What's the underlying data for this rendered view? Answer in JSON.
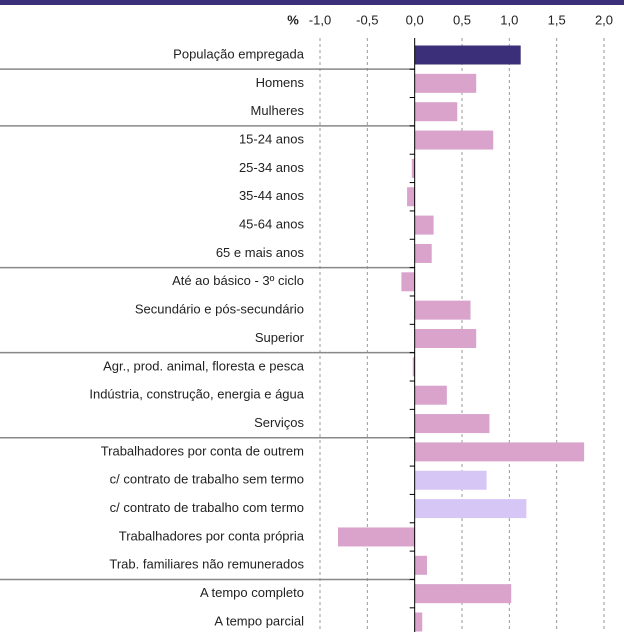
{
  "chart_data": {
    "type": "hbar",
    "x_label": "%",
    "categories": [
      "População empregada",
      "Homens",
      "Mulheres",
      "15-24 anos",
      "25-34 anos",
      "35-44 anos",
      "45-64 anos",
      "65 e mais anos",
      "Até ao básico - 3º ciclo",
      "Secundário e pós-secundário",
      "Superior",
      "Agr., prod. animal, floresta e pesca",
      "Indústria, construção, energia e água",
      "Serviços",
      "Trabalhadores por conta de outrem",
      "c/ contrato de trabalho sem termo",
      "c/ contrato de trabalho com termo",
      "Trabalhadores por conta própria",
      "Trab. familiares não remunerados",
      "A tempo completo",
      "A tempo parcial"
    ],
    "values": [
      1.12,
      0.65,
      0.45,
      0.83,
      -0.03,
      -0.08,
      0.2,
      0.18,
      -0.14,
      0.59,
      0.65,
      -0.02,
      0.34,
      0.79,
      1.79,
      0.76,
      1.18,
      -0.81,
      0.13,
      1.02,
      0.08
    ],
    "colors": [
      "#3b2f7a",
      "#d9a3cc",
      "#d9a3cc",
      "#d9a3cc",
      "#d9a3cc",
      "#d9a3cc",
      "#d9a3cc",
      "#d9a3cc",
      "#d9a3cc",
      "#d9a3cc",
      "#d9a3cc",
      "#d9a3cc",
      "#d9a3cc",
      "#d9a3cc",
      "#d9a3cc",
      "#d6c6f6",
      "#d6c6f6",
      "#d9a3cc",
      "#d9a3cc",
      "#d9a3cc",
      "#d9a3cc"
    ],
    "xlim": [
      -1,
      2
    ],
    "xticks": [
      {
        "value": -1,
        "label": "-1,0"
      },
      {
        "value": -0.5,
        "label": "-0,5"
      },
      {
        "value": 0,
        "label": "0,0"
      },
      {
        "value": 0.5,
        "label": "0,5"
      },
      {
        "value": 1,
        "label": "1,0"
      },
      {
        "value": 1.5,
        "label": "1,5"
      },
      {
        "value": 2,
        "label": "2,0"
      }
    ],
    "grid": true
  }
}
